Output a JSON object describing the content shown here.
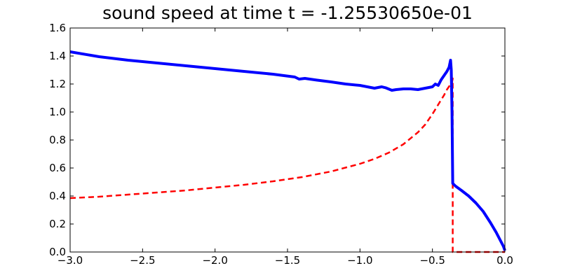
{
  "chart_data": {
    "type": "line",
    "title": "sound speed at time t = -1.25530650e-01",
    "xlabel": "",
    "ylabel": "",
    "xlim": [
      -3.0,
      0.0
    ],
    "ylim": [
      0.0,
      1.6
    ],
    "grid": false,
    "xticks": [
      -3.0,
      -2.5,
      -2.0,
      -1.5,
      -1.0,
      -0.5,
      0.0
    ],
    "xtick_labels": [
      "−3.0",
      "−2.5",
      "−2.0",
      "−1.5",
      "−1.0",
      "−0.5",
      "0.0"
    ],
    "yticks": [
      0.0,
      0.2,
      0.4,
      0.6,
      0.8,
      1.0,
      1.2,
      1.4,
      1.6
    ],
    "ytick_labels": [
      "0.0",
      "0.2",
      "0.4",
      "0.6",
      "0.8",
      "1.0",
      "1.2",
      "1.4",
      "1.6"
    ],
    "series": [
      {
        "color": "#0000ff",
        "style": "solid",
        "x": [
          -3.0,
          -2.8,
          -2.6,
          -2.4,
          -2.2,
          -2.0,
          -1.8,
          -1.6,
          -1.45,
          -1.42,
          -1.38,
          -1.3,
          -1.2,
          -1.1,
          -1.0,
          -0.9,
          -0.85,
          -0.82,
          -0.78,
          -0.75,
          -0.7,
          -0.65,
          -0.6,
          -0.55,
          -0.5,
          -0.48,
          -0.46,
          -0.44,
          -0.42,
          -0.4,
          -0.385,
          -0.375,
          -0.37,
          -0.365,
          -0.36,
          -0.34,
          -0.3,
          -0.25,
          -0.2,
          -0.15,
          -0.1,
          -0.06,
          -0.03,
          -0.01,
          0.0
        ],
        "y": [
          1.43,
          1.395,
          1.37,
          1.35,
          1.33,
          1.31,
          1.29,
          1.27,
          1.25,
          1.235,
          1.24,
          1.228,
          1.215,
          1.2,
          1.19,
          1.17,
          1.18,
          1.172,
          1.155,
          1.16,
          1.165,
          1.165,
          1.16,
          1.17,
          1.18,
          1.2,
          1.19,
          1.23,
          1.26,
          1.29,
          1.32,
          1.37,
          1.3,
          1.0,
          0.49,
          0.47,
          0.44,
          0.4,
          0.35,
          0.29,
          0.21,
          0.14,
          0.08,
          0.04,
          0.01
        ]
      },
      {
        "color": "#ff0000",
        "style": "dashed",
        "x": [
          -3.0,
          -2.8,
          -2.6,
          -2.4,
          -2.2,
          -2.0,
          -1.8,
          -1.6,
          -1.4,
          -1.2,
          -1.0,
          -0.9,
          -0.8,
          -0.7,
          -0.6,
          -0.55,
          -0.5,
          -0.45,
          -0.42,
          -0.4,
          -0.38,
          -0.365,
          -0.36,
          -0.36,
          -0.3,
          -0.2,
          -0.1,
          0.0
        ],
        "y": [
          0.385,
          0.395,
          0.41,
          0.425,
          0.44,
          0.46,
          0.48,
          0.505,
          0.535,
          0.575,
          0.63,
          0.665,
          0.71,
          0.77,
          0.855,
          0.91,
          0.985,
          1.07,
          1.12,
          1.16,
          1.19,
          1.21,
          1.24,
          0.0,
          0.0,
          0.0,
          0.0,
          0.0
        ]
      }
    ]
  }
}
